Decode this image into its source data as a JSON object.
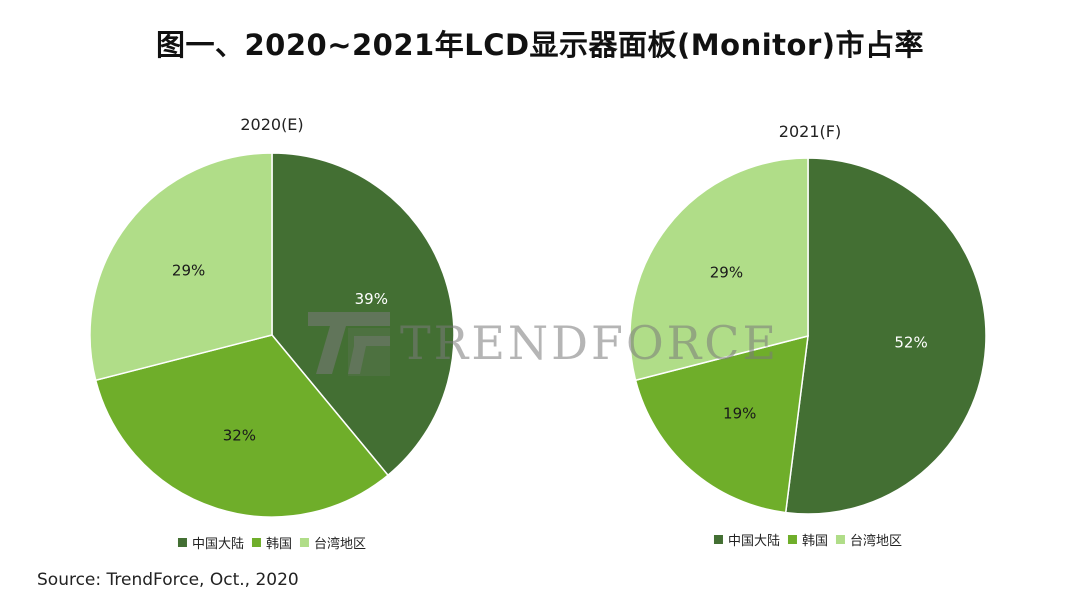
{
  "title": "图一、2020~2021年LCD显示器面板(Monitor)市占率",
  "source": "Source: TrendForce, Oct., 2020",
  "watermark": "TRENDFORCE",
  "colors": {
    "china": "#436f33",
    "korea": "#6fae2a",
    "taiwan": "#b0dd88"
  },
  "legend": [
    {
      "label": "中国大陆",
      "color": "#436f33"
    },
    {
      "label": "韩国",
      "color": "#6fae2a"
    },
    {
      "label": "台湾地区",
      "color": "#b0dd88"
    }
  ],
  "chart_data": [
    {
      "type": "pie",
      "title": "2020(E)",
      "categories": [
        "中国大陆",
        "韩国",
        "台湾地区"
      ],
      "values": [
        39,
        32,
        29
      ],
      "labels": [
        "39%",
        "32%",
        "29%"
      ]
    },
    {
      "type": "pie",
      "title": "2021(F)",
      "categories": [
        "中国大陆",
        "韩国",
        "台湾地区"
      ],
      "values": [
        52,
        19,
        29
      ],
      "labels": [
        "52%",
        "19%",
        "29%"
      ]
    }
  ]
}
